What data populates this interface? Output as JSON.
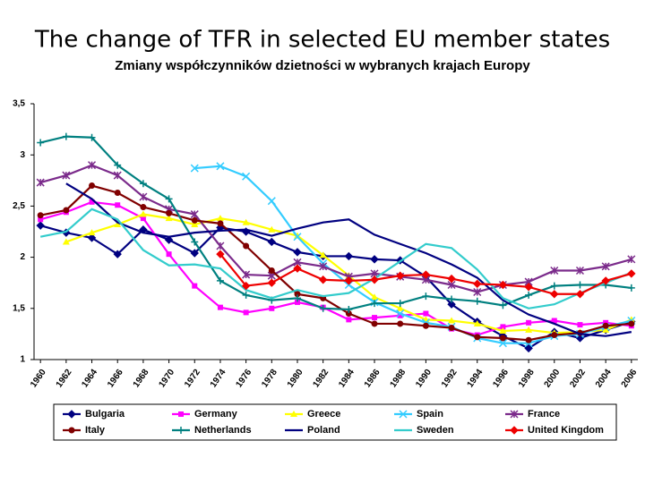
{
  "chart_data": {
    "type": "line",
    "title": "The change of TFR in selected EU member states",
    "subtitle": "Zmiany współczynników dzietności w wybranych krajach Europy",
    "x": [
      1960,
      1962,
      1964,
      1966,
      1968,
      1970,
      1972,
      1974,
      1976,
      1978,
      1980,
      1982,
      1984,
      1986,
      1988,
      1990,
      1992,
      1994,
      1996,
      1998,
      2000,
      2002,
      2004,
      2006
    ],
    "xlim": [
      1959.5,
      2006.5
    ],
    "xticks": [
      1960,
      1962,
      1964,
      1966,
      1968,
      1970,
      1972,
      1974,
      1976,
      1978,
      1980,
      1982,
      1984,
      1986,
      1988,
      1990,
      1992,
      1994,
      1996,
      1998,
      2000,
      2002,
      2004,
      2006
    ],
    "ylim": [
      1,
      3.5
    ],
    "yticks": [
      1,
      {
        "value": 1.5,
        "label": "1,5"
      },
      2,
      {
        "value": 2.5,
        "label": "2,5"
      },
      3,
      {
        "value": 3.5,
        "label": "3,5"
      }
    ],
    "grid": false,
    "legend": "bottom",
    "series": [
      {
        "name": "Bulgaria",
        "color": "#000080",
        "marker": "diamond",
        "values": [
          2.31,
          2.24,
          2.19,
          2.03,
          2.27,
          2.17,
          2.04,
          2.29,
          2.25,
          2.15,
          2.05,
          2.01,
          2.01,
          1.98,
          1.97,
          1.81,
          1.54,
          1.37,
          1.23,
          1.11,
          1.27,
          1.21,
          1.29,
          1.37
        ]
      },
      {
        "name": "Germany",
        "color": "#ff00ff",
        "marker": "square",
        "values": [
          2.37,
          2.44,
          2.54,
          2.51,
          2.38,
          2.03,
          1.72,
          1.51,
          1.46,
          1.5,
          1.56,
          1.51,
          1.39,
          1.41,
          1.43,
          1.45,
          1.3,
          1.24,
          1.32,
          1.36,
          1.38,
          1.34,
          1.36,
          1.33
        ]
      },
      {
        "name": "Greece",
        "color": "#ffff00",
        "marker": "triangle",
        "values": [
          null,
          2.15,
          2.24,
          2.32,
          2.42,
          2.38,
          2.32,
          2.38,
          2.34,
          2.27,
          2.21,
          2.02,
          1.82,
          1.61,
          1.5,
          1.39,
          1.38,
          1.35,
          1.28,
          1.29,
          1.26,
          1.27,
          1.29,
          1.39
        ]
      },
      {
        "name": "Spain",
        "color": "#33ccff",
        "marker": "x",
        "values": [
          null,
          null,
          null,
          null,
          null,
          null,
          2.87,
          2.89,
          2.79,
          2.55,
          2.2,
          1.94,
          1.73,
          1.56,
          1.45,
          1.36,
          1.32,
          1.21,
          1.16,
          1.16,
          1.23,
          1.25,
          1.32,
          1.38
        ]
      },
      {
        "name": "France",
        "color": "#7b2b8b",
        "marker": "star",
        "values": [
          2.73,
          2.8,
          2.9,
          2.8,
          2.59,
          2.47,
          2.42,
          2.11,
          1.83,
          1.82,
          1.95,
          1.91,
          1.81,
          1.84,
          1.81,
          1.78,
          1.73,
          1.66,
          1.73,
          1.76,
          1.87,
          1.87,
          1.91,
          1.98
        ]
      },
      {
        "name": "Italy",
        "color": "#800000",
        "marker": "circle",
        "values": [
          2.41,
          2.46,
          2.7,
          2.63,
          2.49,
          2.43,
          2.36,
          2.33,
          2.11,
          1.87,
          1.64,
          1.6,
          1.45,
          1.35,
          1.35,
          1.33,
          1.31,
          1.22,
          1.21,
          1.19,
          1.24,
          1.26,
          1.33,
          1.35
        ]
      },
      {
        "name": "Netherlands",
        "color": "#008080",
        "marker": "plus",
        "values": [
          3.12,
          3.18,
          3.17,
          2.9,
          2.72,
          2.57,
          2.15,
          1.77,
          1.63,
          1.58,
          1.6,
          1.5,
          1.49,
          1.55,
          1.55,
          1.62,
          1.59,
          1.57,
          1.53,
          1.63,
          1.72,
          1.73,
          1.73,
          1.7
        ]
      },
      {
        "name": "Poland",
        "color": "#000080",
        "marker": "none",
        "values": [
          null,
          2.72,
          2.57,
          2.34,
          2.24,
          2.2,
          2.24,
          2.26,
          2.27,
          2.21,
          2.28,
          2.34,
          2.37,
          2.22,
          2.13,
          2.04,
          1.93,
          1.8,
          1.58,
          1.44,
          1.35,
          1.25,
          1.23,
          1.27
        ]
      },
      {
        "name": "Sweden",
        "color": "#33cccc",
        "marker": "none",
        "values": [
          2.2,
          2.25,
          2.47,
          2.37,
          2.07,
          1.92,
          1.93,
          1.89,
          1.68,
          1.6,
          1.68,
          1.62,
          1.65,
          1.79,
          1.96,
          2.13,
          2.09,
          1.88,
          1.6,
          1.5,
          1.54,
          1.65,
          1.75,
          1.85
        ]
      },
      {
        "name": "United Kingdom",
        "color": "#ee0000",
        "marker": "diamond",
        "values": [
          null,
          null,
          null,
          null,
          null,
          null,
          null,
          2.03,
          1.72,
          1.75,
          1.89,
          1.78,
          1.77,
          1.78,
          1.82,
          1.83,
          1.79,
          1.74,
          1.73,
          1.71,
          1.64,
          1.64,
          1.77,
          1.84
        ]
      }
    ]
  }
}
